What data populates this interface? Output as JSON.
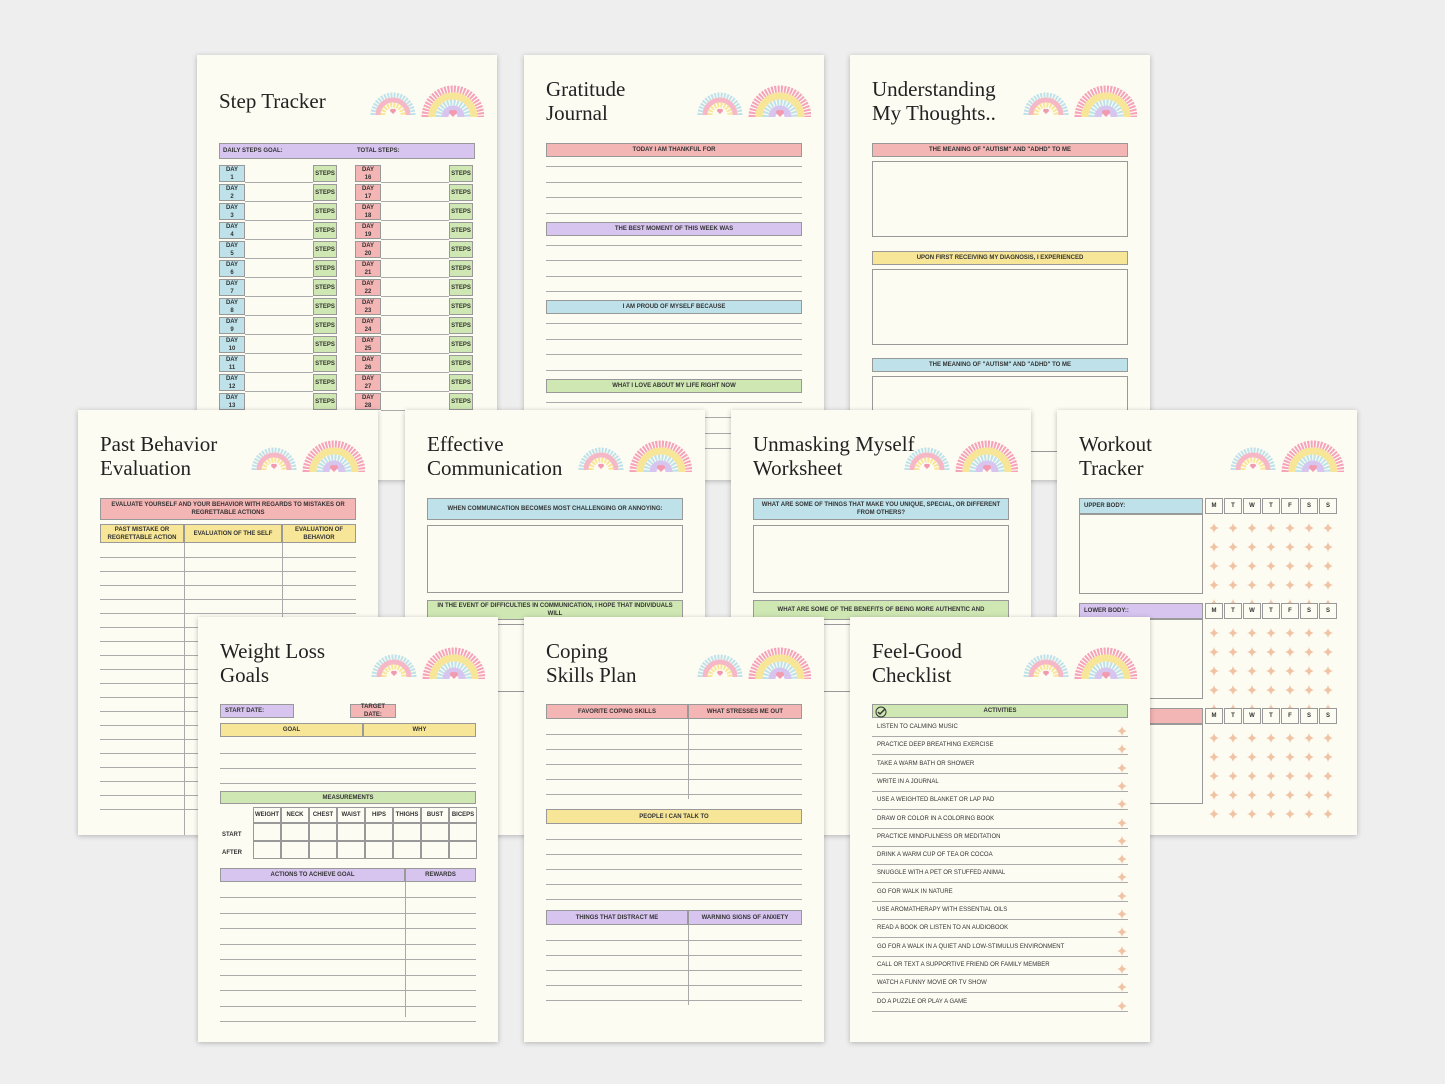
{
  "pages": [
    {
      "kind": "steps",
      "title": [
        "Step Tracker"
      ],
      "goal_label": "DAILY STEPS GOAL:",
      "total_label": "TOTAL STEPS:",
      "steps_label": "STEPS",
      "days_left": [
        "DAY 1",
        "DAY 2",
        "DAY 3",
        "DAY 4",
        "DAY 5",
        "DAY 6",
        "DAY 7",
        "DAY 8",
        "DAY 9",
        "DAY 10",
        "DAY 11",
        "DAY 12",
        "DAY 13"
      ],
      "days_right": [
        "DAY 16",
        "DAY 17",
        "DAY 18",
        "DAY 19",
        "DAY 20",
        "DAY 21",
        "DAY 22",
        "DAY 23",
        "DAY 24",
        "DAY 25",
        "DAY 26",
        "DAY 27",
        "DAY 28"
      ]
    },
    {
      "kind": "lines",
      "title": [
        "Gratitude",
        "Journal"
      ],
      "sections": [
        "TODAY I AM THANKFUL FOR",
        "THE BEST MOMENT OF THIS WEEK WAS",
        "I AM PROUD OF MYSELF BECAUSE",
        "WHAT I LOVE ABOUT MY LIFE RIGHT NOW"
      ],
      "colors": [
        "#f4b5b5",
        "#d7c5f0",
        "#bfe2ea",
        "#cfe7b3"
      ]
    },
    {
      "kind": "boxes",
      "title": [
        "Understanding",
        "My Thoughts.."
      ],
      "sections": [
        "THE MEANING OF \"AUTISM\" AND \"ADHD\" TO ME",
        "UPON FIRST RECEIVING MY DIAGNOSIS, I EXPERIENCED",
        "THE MEANING OF \"AUTISM\" AND \"ADHD\" TO ME"
      ],
      "colors": [
        "#f4b5b5",
        "#f7e697",
        "#bfe2ea"
      ]
    },
    {
      "kind": "eval",
      "title": [
        "Past Behavior",
        "Evaluation"
      ],
      "banner": "EVALUATE YOURSELF AND YOUR BEHAVIOR WITH REGARDS TO MISTAKES OR REGRETTABLE ACTIONS",
      "columns": [
        "PAST MISTAKE OR REGRETTABLE ACTION",
        "EVALUATION OF THE SELF",
        "EVALUATION OF BEHAVIOR"
      ]
    },
    {
      "kind": "prompts",
      "title": [
        "Effective",
        "Communication"
      ],
      "sections": [
        "WHEN COMMUNICATION BECOMES MOST CHALLENGING OR ANNOYING:",
        "IN THE EVENT OF DIFFICULTIES IN COMMUNICATION, I HOPE THAT INDIVIDUALS WILL"
      ],
      "colors": [
        "#bfe2ea",
        "#cfe7b3"
      ]
    },
    {
      "kind": "prompts",
      "title": [
        "Unmasking Myself",
        "Worksheet"
      ],
      "sections": [
        "WHAT ARE SOME OF THINGS THAT MAKE YOU UNIQUE, SPECIAL, OR DIFFERENT FROM OTHERS?",
        "WHAT ARE SOME OF THE BENEFITS OF BEING MORE AUTHENTIC AND"
      ],
      "colors": [
        "#bfe2ea",
        "#cfe7b3"
      ]
    },
    {
      "kind": "workout",
      "title": [
        "Workout",
        "Tracker"
      ],
      "sections": [
        "UPPER BODY:",
        "LOWER BODY::"
      ],
      "days": [
        "M",
        "T",
        "W",
        "T",
        "F",
        "S",
        "S"
      ]
    },
    {
      "kind": "weight",
      "title": [
        "Weight Loss",
        "Goals"
      ],
      "start_label": "START DATE:",
      "target_label": "TARGET DATE:",
      "goal_columns": [
        "GOAL",
        "WHY"
      ],
      "measure_title": "MEASUREMENTS",
      "measures": [
        "WEIGHT",
        "NECK",
        "CHEST",
        "WAIST",
        "HIPS",
        "THIGHS",
        "BUST",
        "BICEPS"
      ],
      "rows": [
        "START",
        "AFTER"
      ],
      "action_columns": [
        "ACTIONS TO ACHIEVE GOAL",
        "REWARDS"
      ]
    },
    {
      "kind": "coping",
      "title": [
        "Coping",
        "Skills Plan"
      ],
      "top_columns": [
        "FAVORITE COPING SKILLS",
        "WHAT STRESSES ME OUT"
      ],
      "middle": "PEOPLE I CAN TALK TO",
      "bottom_columns": [
        "THINGS THAT DISTRACT ME",
        "WARNING SIGNS OF ANXIETY"
      ]
    },
    {
      "kind": "checklist",
      "title": [
        "Feel-Good",
        "Checklist"
      ],
      "header": "ACTIVITIES",
      "items": [
        "LISTEN TO CALMING MUSIC",
        "PRACTICE DEEP BREATHING EXERCISE",
        "TAKE A WARM BATH OR SHOWER",
        "WRITE IN A JOURNAL",
        "USE A WEIGHTED BLANKET OR LAP PAD",
        "DRAW OR COLOR IN A COLORING BOOK",
        "PRACTICE MINDFULNESS OR MEDITATION",
        "DRINK A WARM CUP OF TEA OR COCOA",
        "SNUGGLE WITH A PET OR STUFFED ANIMAL",
        "GO FOR WALK IN NATURE",
        "USE AROMATHERAPY WITH ESSENTIAL OILS",
        "READ A BOOK OR LISTEN TO AN AUDIOBOOK",
        "GO FOR A WALK IN A QUIET AND LOW-STIMULUS ENVIRONMENT",
        "CALL OR TEXT A SUPPORTIVE FRIEND OR FAMILY MEMBER",
        "WATCH A FUNNY MOVIE OR TV SHOW",
        "DO A PUZZLE OR PLAY A GAME"
      ]
    }
  ]
}
